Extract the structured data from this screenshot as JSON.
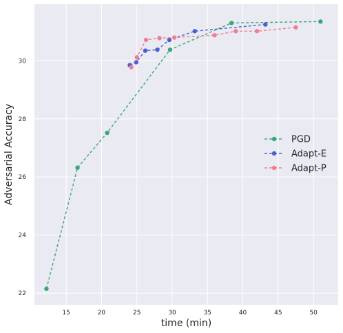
{
  "chart_data": {
    "type": "line",
    "title": "",
    "xlabel": "time (min)",
    "ylabel": "Adversarial Accuracy",
    "xlim": [
      10.5,
      53.5
    ],
    "ylim": [
      21.6,
      31.95
    ],
    "xticks": [
      15,
      20,
      25,
      30,
      35,
      40,
      45,
      50
    ],
    "yticks": [
      22,
      24,
      26,
      28,
      30
    ],
    "grid": true,
    "legend": "center-right",
    "background": "#eaeaf2",
    "series": [
      {
        "name": "PGD",
        "color": "#3aa77a",
        "x": [
          12.2,
          16.6,
          20.8,
          29.7,
          38.4,
          51.0
        ],
        "y": [
          22.15,
          26.32,
          27.52,
          30.38,
          31.3,
          31.35
        ]
      },
      {
        "name": "Adapt-E",
        "color": "#4c5fd0",
        "x": [
          24.0,
          24.9,
          26.2,
          27.9,
          29.6,
          33.2,
          43.2
        ],
        "y": [
          29.85,
          29.95,
          30.35,
          30.38,
          30.72,
          31.02,
          31.25
        ]
      },
      {
        "name": "Adapt-P",
        "color": "#ee7f93",
        "x": [
          24.2,
          25.0,
          26.3,
          28.2,
          30.3,
          36.0,
          39.0,
          42.0,
          47.5
        ],
        "y": [
          29.78,
          30.12,
          30.72,
          30.78,
          30.8,
          30.88,
          31.02,
          31.02,
          31.15
        ]
      }
    ]
  }
}
